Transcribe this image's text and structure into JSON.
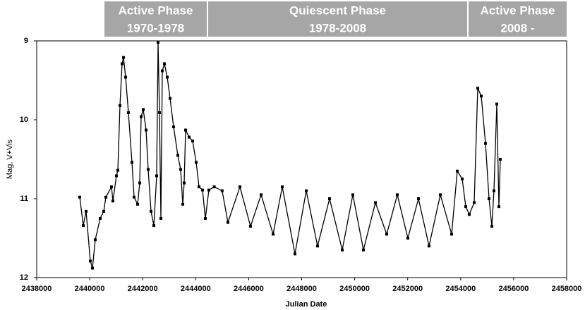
{
  "chart_data": {
    "type": "line",
    "markers": true,
    "color": "#000000",
    "x_label": "Julian Date",
    "y_label": "Mag, V+Vis",
    "phases": [
      {
        "title": "Active Phase",
        "period": "1970-1978"
      },
      {
        "title": "Quiescent Phase",
        "period": "1978-2008"
      },
      {
        "title": "Active Phase",
        "period": "2008 -"
      }
    ],
    "phase_color": "#a6a6a6",
    "xlim": [
      2438000,
      2458000
    ],
    "xticks": [
      2438000,
      2440000,
      2442000,
      2444000,
      2446000,
      2448000,
      2450000,
      2452000,
      2454000,
      2456000,
      2458000
    ],
    "ylim": [
      9,
      12
    ],
    "y_inverted": true,
    "yticks": [
      9,
      10,
      11,
      12
    ],
    "x": [
      2439625,
      2439758,
      2439864,
      2440024,
      2440104,
      2440210,
      2440397,
      2440530,
      2440610,
      2440823,
      2440876,
      2441009,
      2441062,
      2441142,
      2441222,
      2441276,
      2441356,
      2441462,
      2441595,
      2441675,
      2441808,
      2441888,
      2441941,
      2442021,
      2442128,
      2442208,
      2442314,
      2442421,
      2442527,
      2442580,
      2442634,
      2442687,
      2442740,
      2442820,
      2442927,
      2443033,
      2443166,
      2443326,
      2443433,
      2443513,
      2443566,
      2443619,
      2443752,
      2443885,
      2444018,
      2444125,
      2444258,
      2444365,
      2444498,
      2444700,
      2445000,
      2445217,
      2445670,
      2446069,
      2446469,
      2446921,
      2447267,
      2447747,
      2448173,
      2448599,
      2449052,
      2449531,
      2449930,
      2450330,
      2450782,
      2451209,
      2451608,
      2452008,
      2452407,
      2452806,
      2453232,
      2453658,
      2453871,
      2454058,
      2454191,
      2454324,
      2454511,
      2454644,
      2454777,
      2454937,
      2455070,
      2455177,
      2455257,
      2455363,
      2455443,
      2455496
    ],
    "values": [
      10.98,
      11.34,
      11.16,
      11.79,
      11.88,
      11.52,
      11.25,
      11.16,
      10.98,
      10.85,
      11.03,
      10.71,
      10.64,
      9.82,
      9.29,
      9.21,
      9.46,
      9.91,
      10.54,
      10.98,
      11.07,
      10.8,
      9.96,
      9.87,
      10.13,
      10.63,
      11.16,
      11.34,
      10.71,
      9.02,
      9.91,
      11.25,
      9.38,
      9.29,
      9.46,
      9.73,
      10.09,
      10.45,
      10.63,
      11.07,
      10.8,
      10.13,
      10.22,
      10.27,
      10.54,
      10.85,
      10.89,
      11.25,
      10.89,
      10.85,
      10.9,
      11.3,
      10.85,
      11.35,
      10.95,
      11.45,
      10.85,
      11.7,
      10.9,
      11.6,
      11.0,
      11.65,
      10.95,
      11.65,
      11.05,
      11.45,
      10.95,
      11.5,
      11.0,
      11.6,
      10.95,
      11.45,
      10.65,
      10.75,
      11.1,
      11.2,
      11.05,
      9.6,
      9.7,
      10.3,
      11.0,
      11.35,
      10.9,
      9.8,
      11.1,
      10.5
    ]
  }
}
